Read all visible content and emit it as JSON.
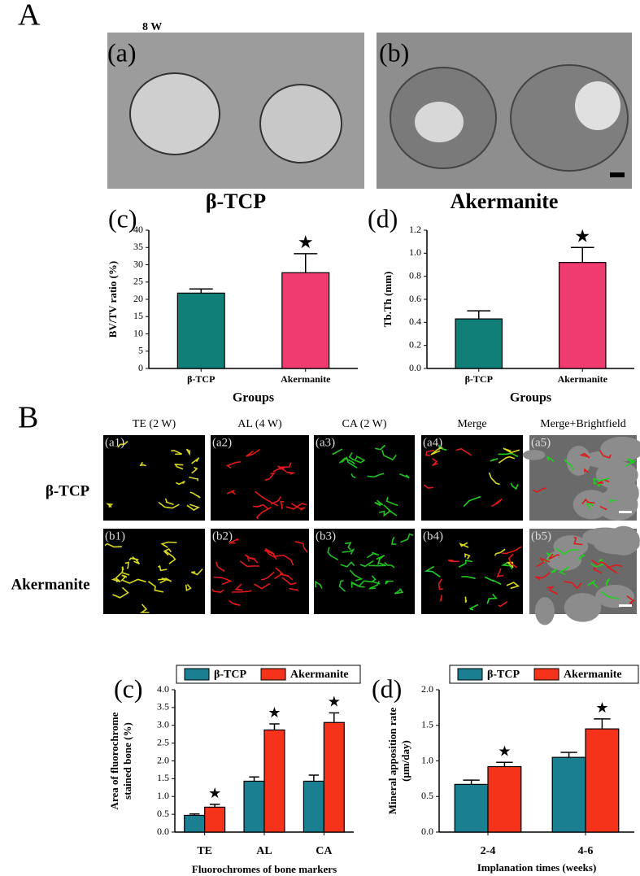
{
  "figure": {
    "A": {
      "label": "A",
      "time": "8 W",
      "images": [
        {
          "label": "(a)",
          "caption": "β-TCP"
        },
        {
          "label": "(b)",
          "caption": "Akermanite"
        }
      ]
    },
    "B": {
      "label": "B",
      "columns": [
        "TE (2 W)",
        "AL (4 W)",
        "CA (2 W)",
        "Merge",
        "Merge+Brightfield"
      ],
      "rows": [
        {
          "name": "β-TCP",
          "labels": [
            "(a1)",
            "(a2)",
            "(a3)",
            "(a4)",
            "(a5)"
          ]
        },
        {
          "name": "Akermanite",
          "labels": [
            "(b1)",
            "(b2)",
            "(b3)",
            "(b4)",
            "(b5)"
          ]
        }
      ]
    }
  },
  "chart_data": [
    {
      "type": "bar",
      "panel_label": "(c)",
      "y_label": [
        "BV/TV ratio (%)"
      ],
      "x_label": "Groups",
      "categories": [
        "β-TCP",
        "Akermanite"
      ],
      "values": [
        21.8,
        27.7
      ],
      "errors": [
        1.2,
        5.5
      ],
      "colors": [
        "#0f7f78",
        "#ef3b6e"
      ],
      "significance": [
        null,
        "★"
      ],
      "ylim": [
        0,
        40
      ],
      "yticks": [
        0,
        5,
        10,
        15,
        20,
        25,
        30,
        35,
        40
      ]
    },
    {
      "type": "bar",
      "panel_label": "(d)",
      "y_label": [
        "Tb.Th (mm)"
      ],
      "x_label": "Groups",
      "categories": [
        "β-TCP",
        "Akermanite"
      ],
      "values": [
        0.43,
        0.92
      ],
      "errors": [
        0.07,
        0.13
      ],
      "colors": [
        "#0f7f78",
        "#ef3b6e"
      ],
      "significance": [
        null,
        "★"
      ],
      "ylim": [
        0,
        1.2
      ],
      "yticks": [
        {
          "value": 0,
          "label": "0.0"
        },
        0.2,
        0.4,
        0.6,
        0.8,
        {
          "value": 1,
          "label": "1.0"
        },
        1.2
      ]
    },
    {
      "type": "bar",
      "panel_label": "(c)",
      "y_label": [
        "Area of fluorochrome",
        "stained bone (%)"
      ],
      "x_label": "Fluorochromes of bone markers",
      "categories": [
        "TE",
        "AL",
        "CA"
      ],
      "series": [
        {
          "name": "β-TCP",
          "color": "#1a7f91",
          "values": [
            0.47,
            1.43,
            1.43
          ],
          "errors": [
            0.04,
            0.12,
            0.17
          ]
        },
        {
          "name": "Akermanite",
          "color": "#f5321a",
          "values": [
            0.7,
            2.87,
            3.08
          ],
          "errors": [
            0.08,
            0.17,
            0.27
          ],
          "significance": [
            "★",
            "★",
            "★"
          ]
        }
      ],
      "ylim": [
        0,
        4
      ],
      "yticks": [
        {
          "value": 0,
          "label": "0.0"
        },
        0.5,
        {
          "value": 1,
          "label": "1.0"
        },
        1.5,
        {
          "value": 2,
          "label": "2.0"
        },
        2.5,
        {
          "value": 3,
          "label": "3.0"
        },
        3.5,
        {
          "value": 4,
          "label": "4.0"
        }
      ]
    },
    {
      "type": "bar",
      "panel_label": "(d)",
      "y_label": [
        "Mineral apposition rate",
        "(μm/day)"
      ],
      "x_label": "Implanation times (weeks)",
      "categories": [
        "2-4",
        "4-6"
      ],
      "series": [
        {
          "name": "β-TCP",
          "color": "#1a7f91",
          "values": [
            0.67,
            1.05
          ],
          "errors": [
            0.06,
            0.07
          ]
        },
        {
          "name": "Akermanite",
          "color": "#f5321a",
          "values": [
            0.92,
            1.45
          ],
          "errors": [
            0.06,
            0.14
          ],
          "significance": [
            "★",
            "★"
          ]
        }
      ],
      "ylim": [
        0,
        2
      ],
      "yticks": [
        {
          "value": 0,
          "label": "0.0"
        },
        0.5,
        {
          "value": 1,
          "label": "1.0"
        },
        1.5,
        {
          "value": 2,
          "label": "2.0"
        }
      ]
    }
  ]
}
